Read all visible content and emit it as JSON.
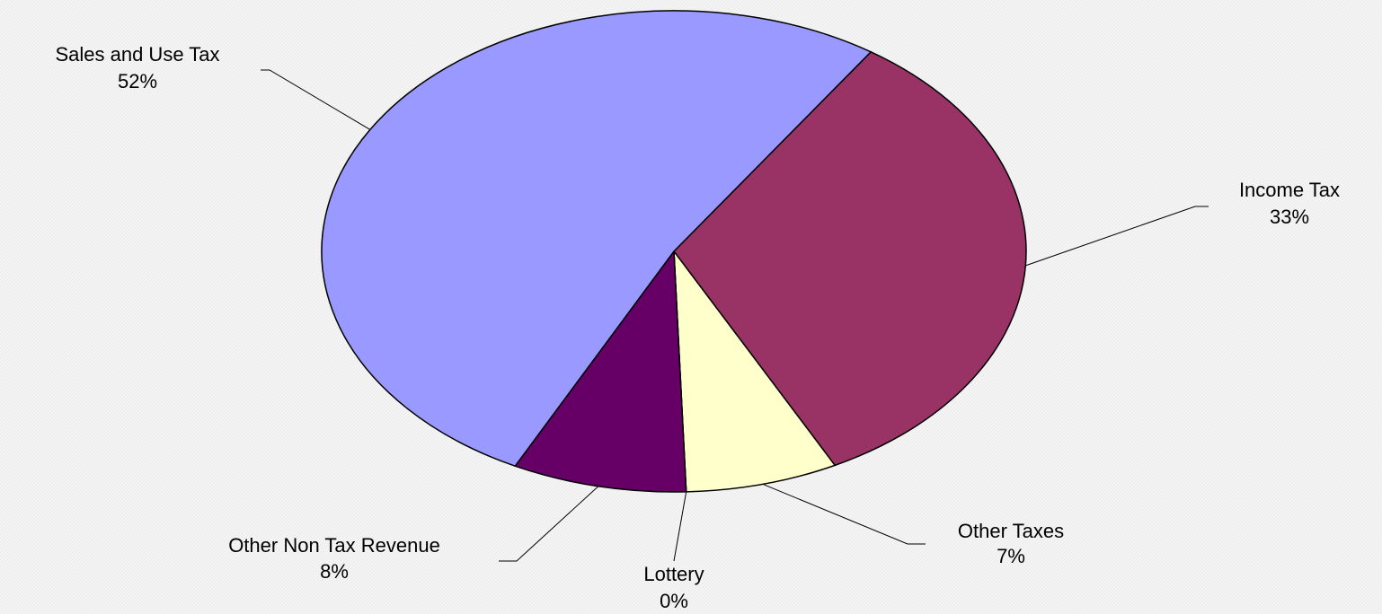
{
  "chart_data": {
    "type": "pie",
    "categories": [
      "Income Tax",
      "Other Taxes",
      "Lottery",
      "Other Non Tax Revenue",
      "Sales and Use Tax"
    ],
    "values": [
      33,
      7,
      0,
      8,
      52
    ],
    "value_labels": [
      "33%",
      "7%",
      "0%",
      "8%",
      "52%"
    ],
    "colors": [
      "#993366",
      "#ffffcc",
      "#ccffff",
      "#660066",
      "#9999ff"
    ]
  }
}
